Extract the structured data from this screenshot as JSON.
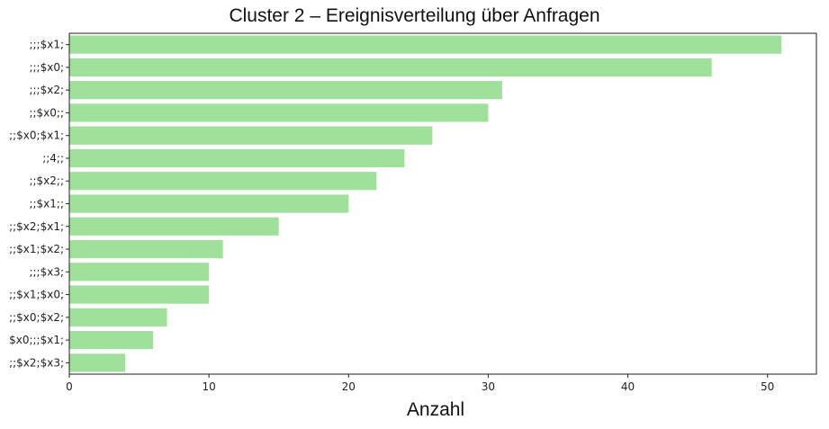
{
  "chart_data": {
    "type": "bar",
    "orientation": "horizontal",
    "title": "Cluster 2 – Ereignisverteilung über Anfragen",
    "xlabel": "Anzahl",
    "ylabel": "",
    "categories": [
      ";;;$x1;",
      ";;;$x0;",
      ";;;$x2;",
      ";;$x0;;",
      ";;$x0;$x1;",
      ";;4;;",
      ";;$x2;;",
      ";;$x1;;",
      ";;$x2;$x1;",
      ";;$x1;$x2;",
      ";;;$x3;",
      ";;$x1;$x0;",
      ";;$x0;$x2;",
      "$x0;;;$x1;",
      ";;$x2;$x3;"
    ],
    "values": [
      51,
      46,
      31,
      30,
      26,
      24,
      22,
      20,
      15,
      11,
      10,
      10,
      7,
      6,
      4
    ],
    "xlim": [
      0,
      53.5
    ],
    "xticks": [
      0,
      10,
      20,
      30,
      40,
      50
    ],
    "bar_color": "#9fe19b",
    "grid": false
  }
}
